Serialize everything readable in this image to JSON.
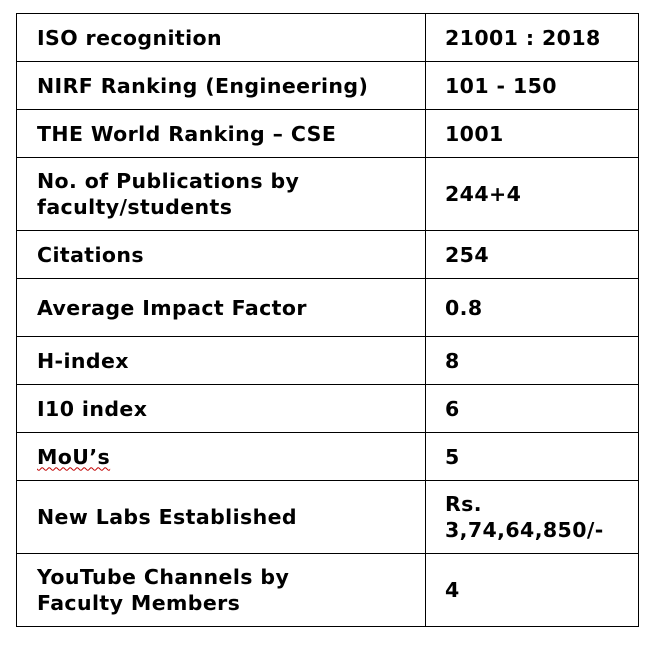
{
  "rows": [
    {
      "label": "ISO recognition",
      "value": "21001 : 2018"
    },
    {
      "label": "NIRF Ranking (Engineering)",
      "value": "101 - 150"
    },
    {
      "label": "THE World Ranking – CSE",
      "value": "1001"
    },
    {
      "label": "No. of Publications by\nfaculty/students",
      "value": "244+4"
    },
    {
      "label": "Citations",
      "value": "254"
    },
    {
      "label": "Average Impact Factor",
      "value": "0.8"
    },
    {
      "label": "H-index",
      "value": "8"
    },
    {
      "label": "I10 index",
      "value": "6"
    },
    {
      "label": "MoU’s",
      "value": "5"
    },
    {
      "label": "New Labs Established",
      "value": "Rs.\n3,74,64,850/-"
    },
    {
      "label": "YouTube Channels by\nFaculty Members",
      "value": "4"
    }
  ]
}
